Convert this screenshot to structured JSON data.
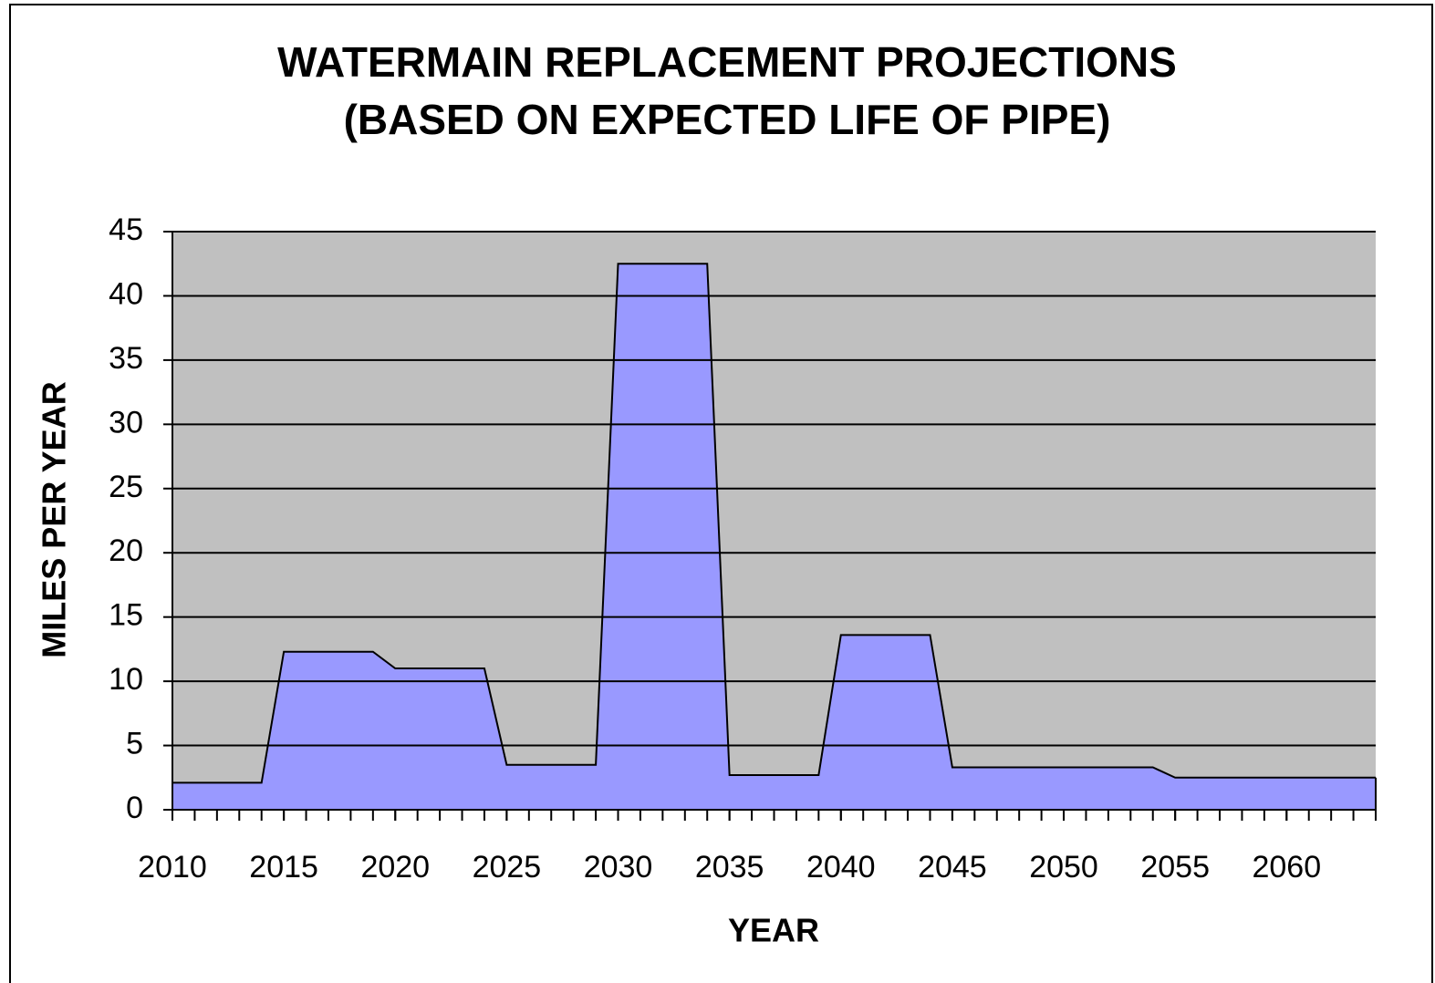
{
  "chart_data": {
    "type": "area",
    "title": "WATERMAIN REPLACEMENT PROJECTIONS",
    "subtitle": "(BASED ON EXPECTED LIFE OF PIPE)",
    "x_label": "YEAR",
    "y_label": "MILES PER YEAR",
    "x": [
      2010,
      2011,
      2012,
      2013,
      2014,
      2015,
      2016,
      2017,
      2018,
      2019,
      2020,
      2021,
      2022,
      2023,
      2024,
      2025,
      2026,
      2027,
      2028,
      2029,
      2030,
      2031,
      2032,
      2033,
      2034,
      2035,
      2036,
      2037,
      2038,
      2039,
      2040,
      2041,
      2042,
      2043,
      2044,
      2045,
      2046,
      2047,
      2048,
      2049,
      2050,
      2051,
      2052,
      2053,
      2054,
      2055,
      2056,
      2057,
      2058,
      2059,
      2060,
      2061,
      2062,
      2063,
      2064
    ],
    "values": [
      2.1,
      2.1,
      2.1,
      2.1,
      2.1,
      12.3,
      12.3,
      12.3,
      12.3,
      12.3,
      11,
      11,
      11,
      11,
      11,
      3.5,
      3.5,
      3.5,
      3.5,
      3.5,
      42.5,
      42.5,
      42.5,
      42.5,
      42.5,
      2.7,
      2.7,
      2.7,
      2.7,
      2.7,
      13.6,
      13.6,
      13.6,
      13.6,
      13.6,
      3.3,
      3.3,
      3.3,
      3.3,
      3.3,
      3.3,
      3.3,
      3.3,
      3.3,
      3.3,
      2.5,
      2.5,
      2.5,
      2.5,
      2.5,
      2.5,
      2.5,
      2.5,
      2.5,
      2.5
    ],
    "color": "#9999ff",
    "plot_background": "#c0c0c0",
    "xlim": [
      2010,
      2064
    ],
    "xticks": [
      2010,
      2015,
      2020,
      2025,
      2030,
      2035,
      2040,
      2045,
      2050,
      2055,
      2060
    ],
    "ylim": [
      0,
      45
    ],
    "yticks": [
      0,
      5,
      10,
      15,
      20,
      25,
      30,
      35,
      40,
      45
    ],
    "grid": true
  }
}
